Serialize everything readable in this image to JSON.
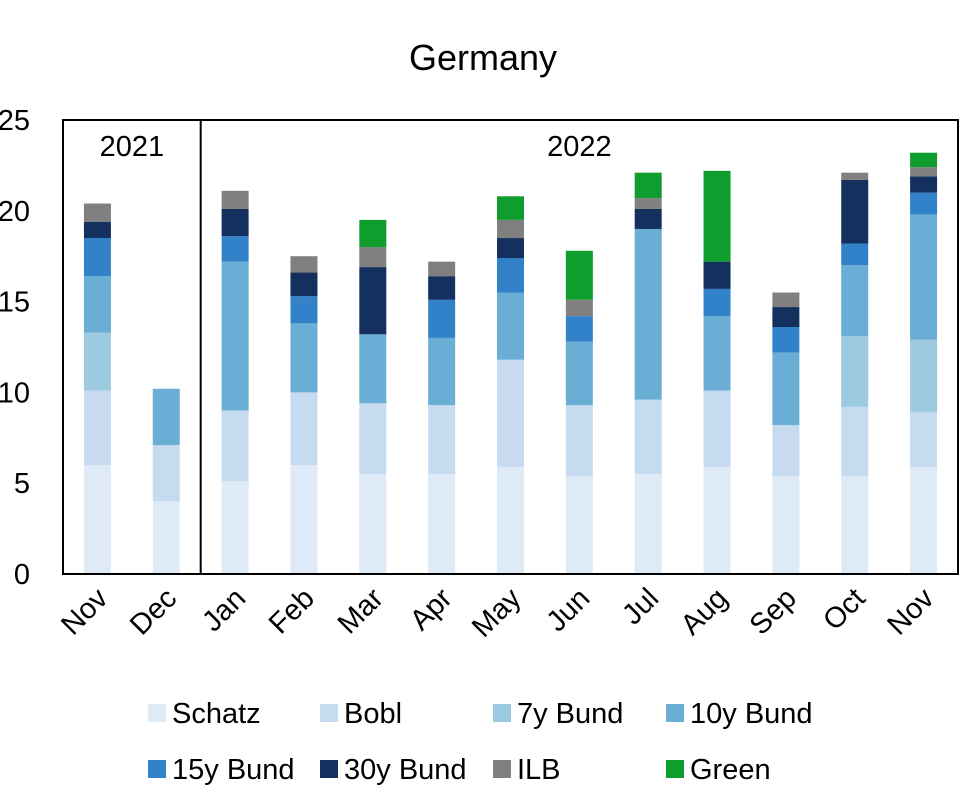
{
  "chart_data": {
    "type": "bar",
    "stacked": true,
    "title": "Germany",
    "xlabel": "",
    "ylabel": "",
    "ylim": [
      0,
      25
    ],
    "yticks": [
      "0",
      "5",
      "10",
      "15",
      "20",
      "25"
    ],
    "grid": false,
    "legend_position": "bottom",
    "categories": [
      "Nov",
      "Dec",
      "Jan",
      "Feb",
      "Mar",
      "Apr",
      "May",
      "Jun",
      "Jul",
      "Aug",
      "Sep",
      "Oct",
      "Nov"
    ],
    "year_groups": [
      {
        "label": "2021",
        "start": 0,
        "end": 1
      },
      {
        "label": "2022",
        "start": 2,
        "end": 12
      }
    ],
    "series": [
      {
        "name": "Schatz",
        "color": "#deebf7",
        "values": [
          6.0,
          4.0,
          5.1,
          6.0,
          5.5,
          5.5,
          5.9,
          5.4,
          5.5,
          5.9,
          5.4,
          5.4,
          5.9
        ]
      },
      {
        "name": "Bobl",
        "color": "#c6dbef",
        "values": [
          4.1,
          3.1,
          3.9,
          4.0,
          3.9,
          3.8,
          5.9,
          3.9,
          4.1,
          4.2,
          2.8,
          3.8,
          3.0
        ]
      },
      {
        "name": "7y Bund",
        "color": "#9ecae1",
        "values": [
          3.2,
          0.0,
          0.0,
          0.0,
          0.0,
          0.0,
          0.0,
          0.0,
          0.0,
          0.0,
          0.0,
          3.9,
          4.0
        ]
      },
      {
        "name": "10y Bund",
        "color": "#6aaed6",
        "values": [
          3.1,
          3.1,
          8.2,
          3.8,
          3.8,
          3.7,
          3.7,
          3.5,
          9.4,
          4.1,
          4.0,
          3.9,
          6.9
        ]
      },
      {
        "name": "15y Bund",
        "color": "#3182c8",
        "values": [
          2.1,
          0.0,
          1.4,
          1.5,
          0.0,
          2.1,
          1.9,
          1.4,
          0.0,
          1.5,
          1.4,
          1.2,
          1.2
        ]
      },
      {
        "name": "30y Bund",
        "color": "#14305e",
        "values": [
          0.9,
          0.0,
          1.5,
          1.3,
          3.7,
          1.3,
          1.1,
          0.0,
          1.1,
          1.5,
          1.1,
          3.5,
          0.9
        ]
      },
      {
        "name": "ILB",
        "color": "#808080",
        "values": [
          1.0,
          0.0,
          1.0,
          0.9,
          1.1,
          0.8,
          1.0,
          0.9,
          0.6,
          0.0,
          0.8,
          0.4,
          0.5
        ]
      },
      {
        "name": "Green",
        "color": "#0f9d2e",
        "values": [
          0.0,
          0.0,
          0.0,
          0.0,
          1.5,
          0.0,
          1.3,
          2.7,
          1.4,
          5.0,
          0.0,
          0.0,
          0.8
        ]
      }
    ]
  }
}
